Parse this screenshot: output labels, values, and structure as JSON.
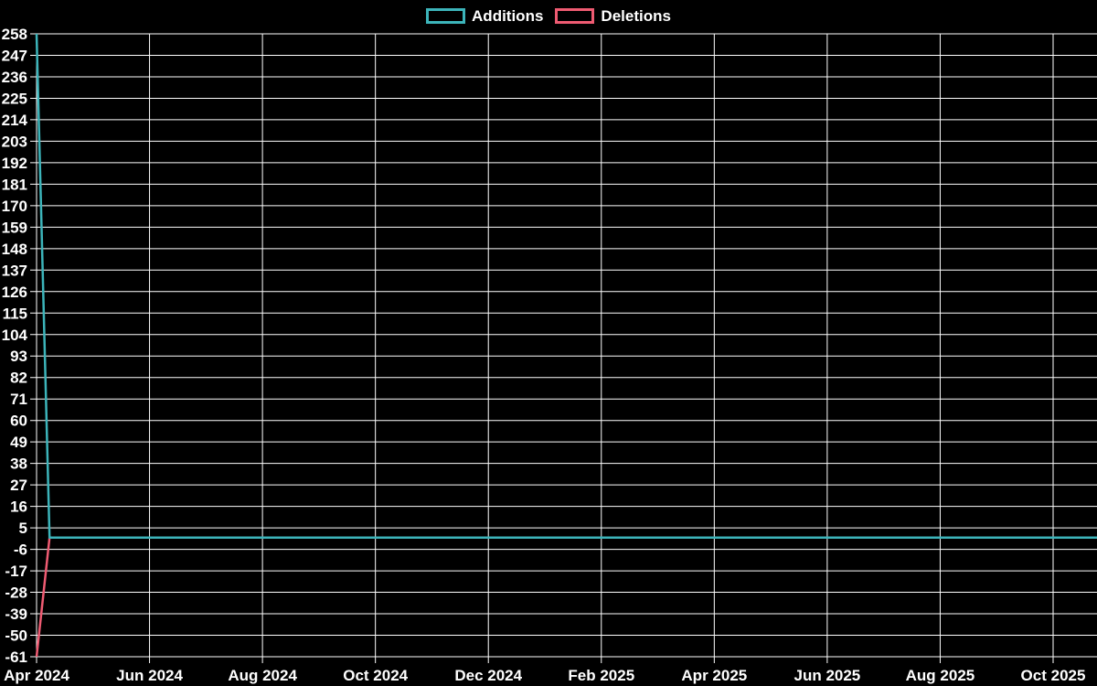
{
  "chart_data": {
    "type": "line",
    "title": "",
    "description": "Weekly additions and deletions line chart on black background with white grid",
    "background": "#000000",
    "grid_color": "#ffffff",
    "text_color": "#ffffff",
    "grid": true,
    "legend_position": "top-center",
    "x_axis": {
      "unit": "weeks since first data point",
      "tick_labels": [
        "Apr 2024",
        "Jun 2024",
        "Aug 2024",
        "Oct 2024",
        "Dec 2024",
        "Feb 2025",
        "Apr 2025",
        "Jun 2025",
        "Aug 2025",
        "Oct 2025"
      ],
      "range_weeks": [
        0,
        82
      ]
    },
    "y_axis": {
      "min": -61,
      "max": 258,
      "step": 11,
      "ticks": [
        258,
        247,
        236,
        225,
        214,
        203,
        192,
        181,
        170,
        159,
        148,
        137,
        126,
        115,
        104,
        93,
        82,
        71,
        60,
        49,
        38,
        27,
        16,
        5,
        -6,
        -17,
        -28,
        -39,
        -50,
        -61
      ]
    },
    "series": [
      {
        "name": "Additions",
        "color": "#3cb4ba",
        "points": [
          [
            0,
            258
          ],
          [
            1,
            0
          ],
          [
            82,
            0
          ]
        ]
      },
      {
        "name": "Deletions",
        "color": "#ef5b72",
        "points": [
          [
            0,
            -61
          ],
          [
            1,
            0
          ],
          [
            82,
            0
          ]
        ]
      }
    ]
  }
}
